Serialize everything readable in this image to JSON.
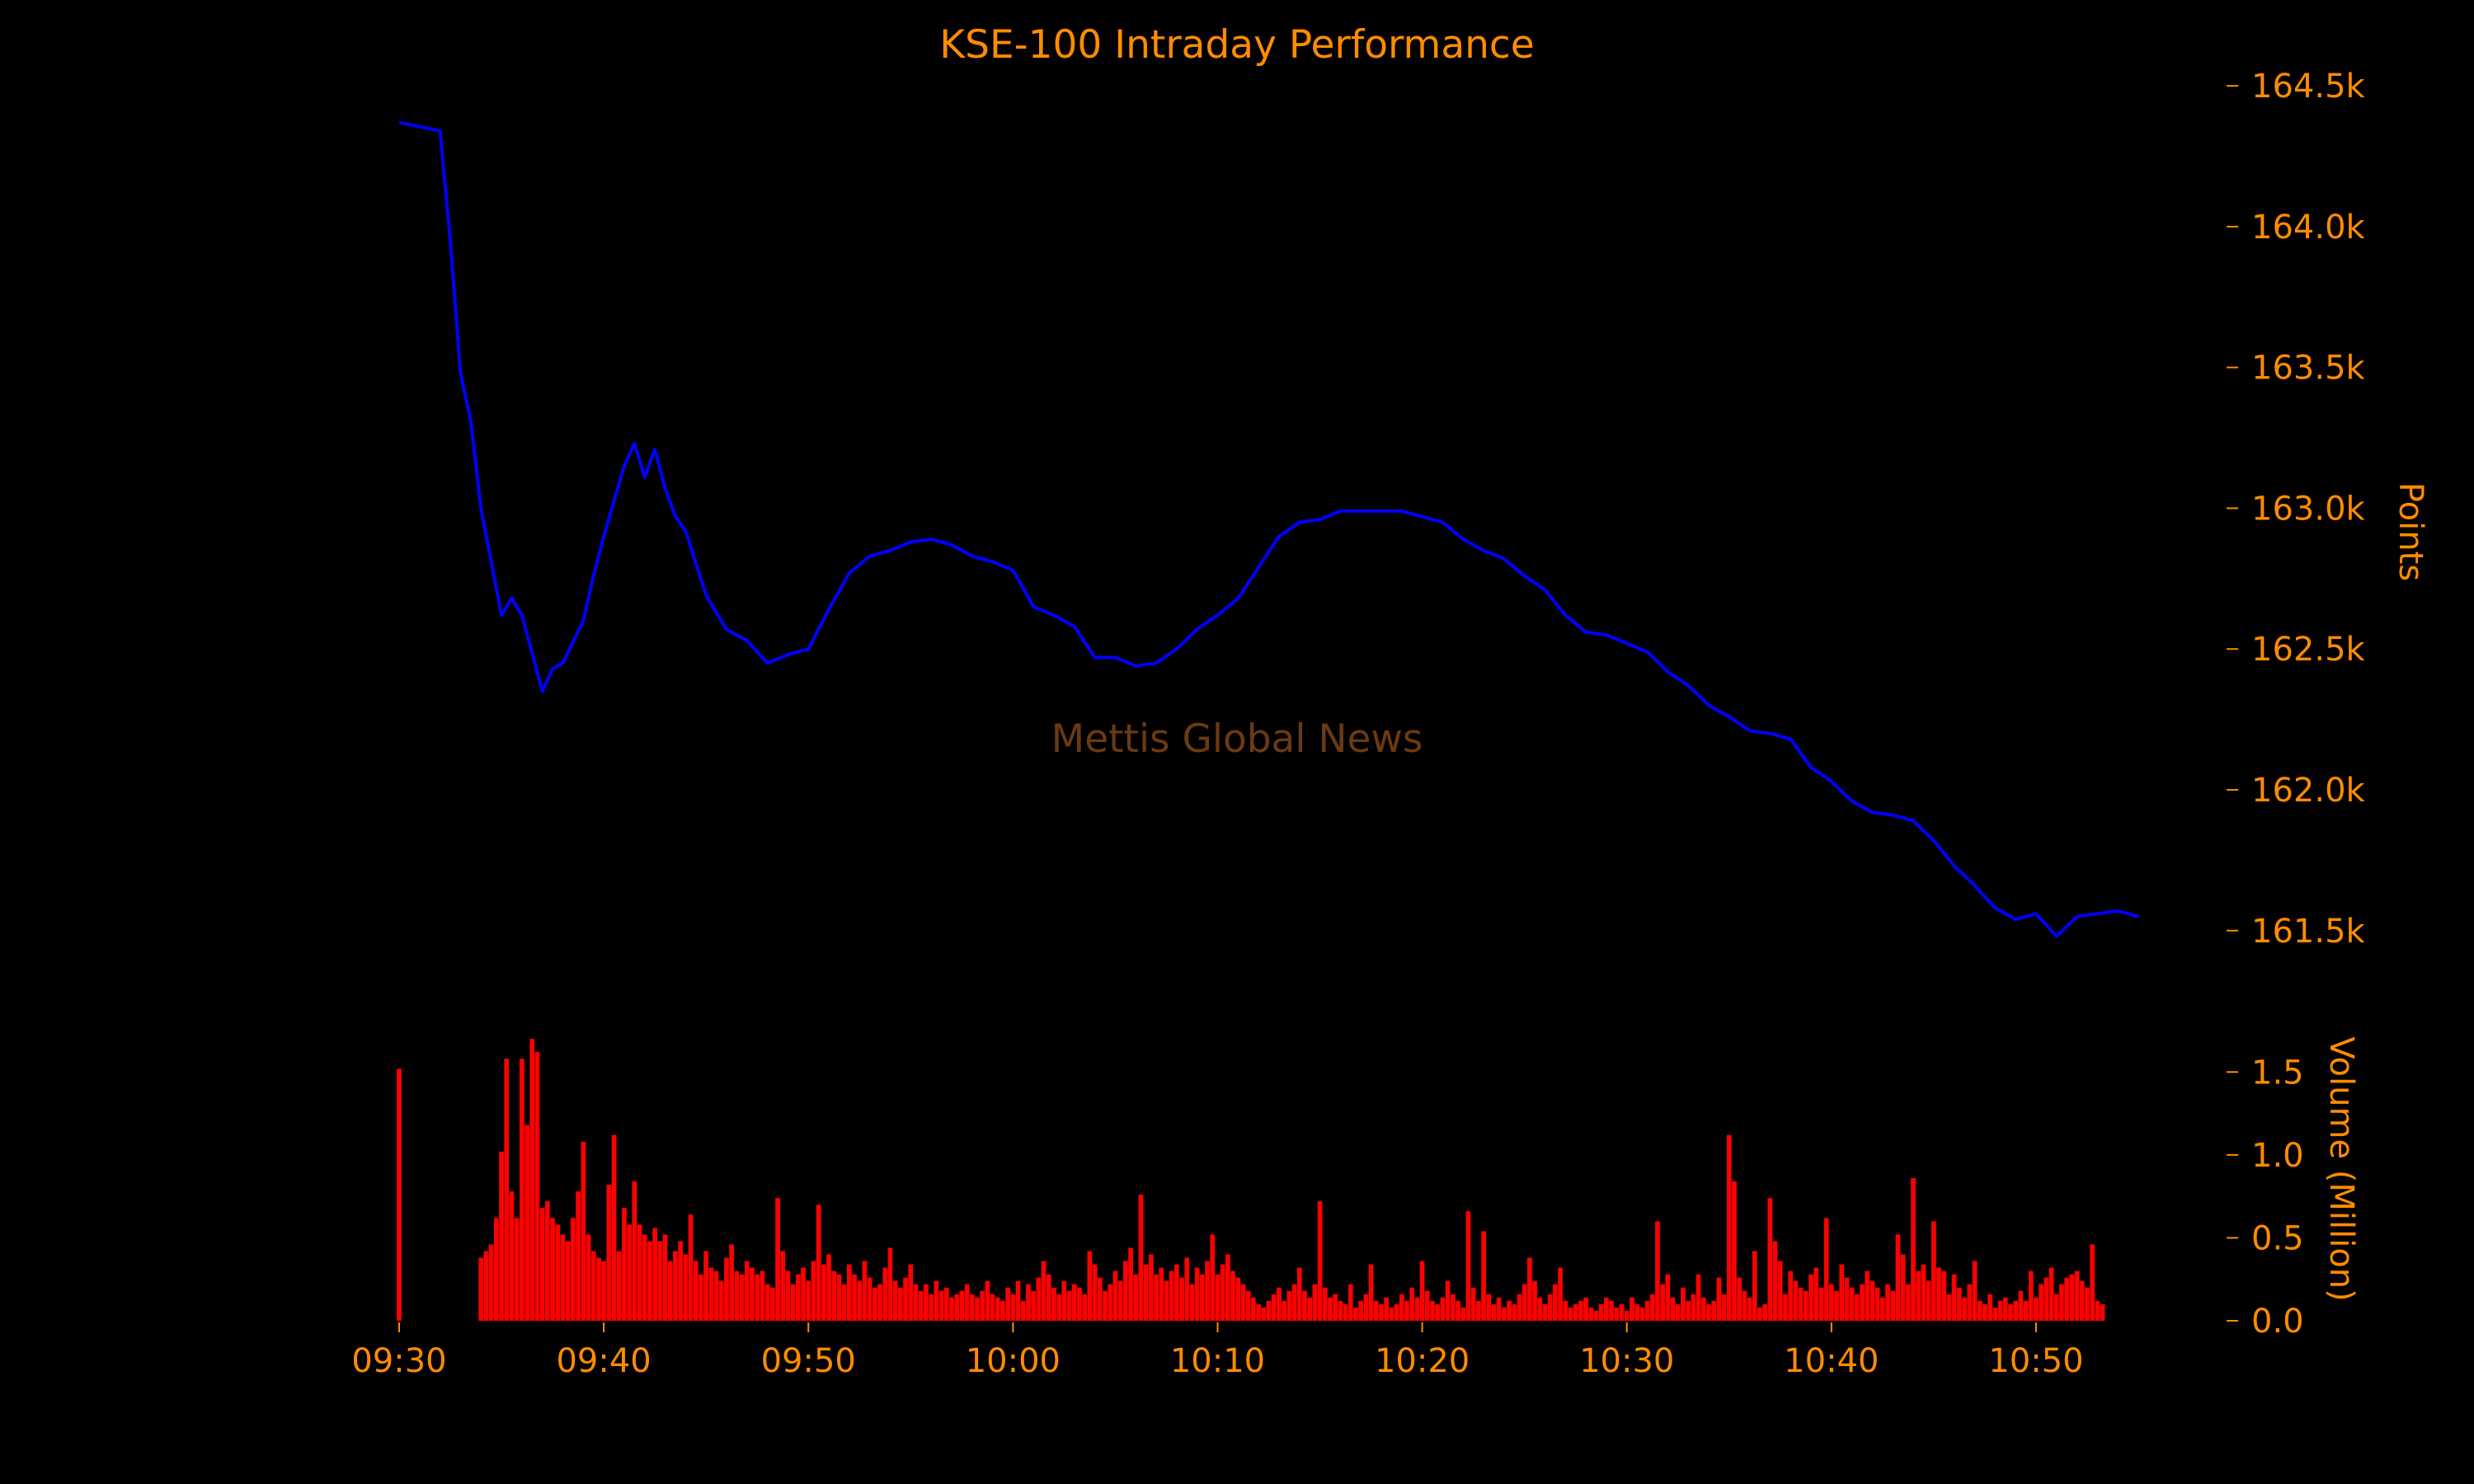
{
  "chart_data": {
    "type": "line",
    "title": "KSE-100 Intraday Performance",
    "watermark": "Mettis Global News",
    "colors": {
      "background": "#000000",
      "text": "#FF8C00",
      "price_line": "#0000FF",
      "volume_bars": "#FF0000",
      "watermark": "#6B3A12"
    },
    "x_axis": {
      "start": "09:30",
      "end": "10:55",
      "ticks": [
        "09:30",
        "09:40",
        "09:50",
        "10:00",
        "10:10",
        "10:20",
        "10:30",
        "10:40",
        "10:50"
      ]
    },
    "price_axis": {
      "label": "Points",
      "ylim": [
        161350,
        164600
      ],
      "ticks": [
        161500,
        162000,
        162500,
        163000,
        163500,
        164000,
        164500
      ],
      "tick_labels": [
        "161.5k",
        "162.0k",
        "162.5k",
        "163.0k",
        "163.5k",
        "164.0k",
        "164.5k"
      ],
      "side": "right"
    },
    "volume_axis": {
      "label": "Volume (Million)",
      "ylim": [
        0,
        1.75
      ],
      "ticks": [
        0,
        0.5,
        1.0,
        1.5
      ],
      "tick_labels": [
        "0.0",
        "0.5",
        "1.0",
        "1.5"
      ],
      "side": "right"
    },
    "price_series": {
      "name": "KSE-100",
      "points": [
        [
          "09:30",
          164370
        ],
        [
          "09:32",
          164340
        ],
        [
          "09:32:30",
          163950
        ],
        [
          "09:33",
          163480
        ],
        [
          "09:33:30",
          163310
        ],
        [
          "09:34",
          163000
        ],
        [
          "09:35",
          162620
        ],
        [
          "09:35:30",
          162680
        ],
        [
          "09:36",
          162620
        ],
        [
          "09:37",
          162350
        ],
        [
          "09:37:30",
          162430
        ],
        [
          "09:38",
          162450
        ],
        [
          "09:39",
          162600
        ],
        [
          "09:39:30",
          162760
        ],
        [
          "09:40",
          162900
        ],
        [
          "09:41",
          163150
        ],
        [
          "09:41:30",
          163230
        ],
        [
          "09:42",
          163110
        ],
        [
          "09:42:30",
          163210
        ],
        [
          "09:43",
          163070
        ],
        [
          "09:43:30",
          162970
        ],
        [
          "09:44",
          162920
        ],
        [
          "09:45",
          162690
        ],
        [
          "09:46",
          162570
        ],
        [
          "09:47",
          162530
        ],
        [
          "09:48",
          162450
        ],
        [
          "09:49",
          162480
        ],
        [
          "09:50",
          162500
        ],
        [
          "09:51",
          162640
        ],
        [
          "09:52",
          162770
        ],
        [
          "09:53",
          162830
        ],
        [
          "09:54",
          162850
        ],
        [
          "09:55",
          162880
        ],
        [
          "09:56",
          162890
        ],
        [
          "09:57",
          162870
        ],
        [
          "09:58",
          162830
        ],
        [
          "09:59",
          162810
        ],
        [
          "10:00",
          162780
        ],
        [
          "10:01",
          162650
        ],
        [
          "10:02",
          162620
        ],
        [
          "10:03",
          162580
        ],
        [
          "10:04",
          162470
        ],
        [
          "10:05",
          162470
        ],
        [
          "10:06",
          162440
        ],
        [
          "10:07",
          162450
        ],
        [
          "10:08",
          162500
        ],
        [
          "10:09",
          162570
        ],
        [
          "10:10",
          162620
        ],
        [
          "10:11",
          162680
        ],
        [
          "10:12",
          162790
        ],
        [
          "10:13",
          162900
        ],
        [
          "10:14",
          162950
        ],
        [
          "10:15",
          162960
        ],
        [
          "10:16",
          162990
        ],
        [
          "10:17",
          162990
        ],
        [
          "10:18",
          162990
        ],
        [
          "10:19",
          162990
        ],
        [
          "10:20",
          162970
        ],
        [
          "10:21",
          162950
        ],
        [
          "10:22",
          162890
        ],
        [
          "10:23",
          162850
        ],
        [
          "10:24",
          162820
        ],
        [
          "10:25",
          162760
        ],
        [
          "10:26",
          162710
        ],
        [
          "10:27",
          162620
        ],
        [
          "10:28",
          162560
        ],
        [
          "10:29",
          162550
        ],
        [
          "10:30",
          162520
        ],
        [
          "10:31",
          162490
        ],
        [
          "10:32",
          162420
        ],
        [
          "10:33",
          162370
        ],
        [
          "10:34",
          162300
        ],
        [
          "10:35",
          162260
        ],
        [
          "10:36",
          162210
        ],
        [
          "10:37",
          162200
        ],
        [
          "10:38",
          162180
        ],
        [
          "10:39",
          162080
        ],
        [
          "10:40",
          162030
        ],
        [
          "10:41",
          161960
        ],
        [
          "10:42",
          161920
        ],
        [
          "10:43",
          161910
        ],
        [
          "10:44",
          161890
        ],
        [
          "10:45",
          161820
        ],
        [
          "10:46",
          161730
        ],
        [
          "10:47",
          161660
        ],
        [
          "10:48",
          161580
        ],
        [
          "10:49",
          161540
        ],
        [
          "10:50",
          161560
        ],
        [
          "10:51",
          161480
        ],
        [
          "10:52",
          161550
        ],
        [
          "10:53",
          161560
        ],
        [
          "10:54",
          161570
        ],
        [
          "10:55",
          161550
        ]
      ]
    },
    "volume_series": {
      "name": "Volume",
      "start": "09:30",
      "interval_seconds": 15,
      "values": [
        1.52,
        0,
        0,
        0,
        0,
        0,
        0,
        0,
        0,
        0,
        0,
        0,
        0,
        0,
        0,
        0,
        0.38,
        0.42,
        0.46,
        0.62,
        1.02,
        1.58,
        0.78,
        0.62,
        1.58,
        1.18,
        1.7,
        1.62,
        0.68,
        0.72,
        0.62,
        0.58,
        0.52,
        0.48,
        0.62,
        0.78,
        1.08,
        0.52,
        0.42,
        0.38,
        0.36,
        0.82,
        1.12,
        0.42,
        0.68,
        0.58,
        0.84,
        0.58,
        0.52,
        0.48,
        0.56,
        0.48,
        0.52,
        0.36,
        0.42,
        0.48,
        0.4,
        0.64,
        0.36,
        0.28,
        0.42,
        0.32,
        0.3,
        0.24,
        0.38,
        0.46,
        0.3,
        0.28,
        0.36,
        0.32,
        0.28,
        0.3,
        0.22,
        0.2,
        0.74,
        0.42,
        0.3,
        0.22,
        0.28,
        0.32,
        0.24,
        0.36,
        0.7,
        0.34,
        0.4,
        0.3,
        0.28,
        0.22,
        0.34,
        0.28,
        0.24,
        0.36,
        0.26,
        0.2,
        0.22,
        0.32,
        0.44,
        0.24,
        0.2,
        0.26,
        0.34,
        0.22,
        0.18,
        0.22,
        0.16,
        0.24,
        0.18,
        0.2,
        0.14,
        0.16,
        0.18,
        0.22,
        0.16,
        0.14,
        0.18,
        0.24,
        0.16,
        0.14,
        0.12,
        0.2,
        0.16,
        0.24,
        0.12,
        0.22,
        0.18,
        0.26,
        0.36,
        0.28,
        0.2,
        0.16,
        0.24,
        0.18,
        0.22,
        0.2,
        0.16,
        0.42,
        0.34,
        0.26,
        0.18,
        0.22,
        0.3,
        0.24,
        0.36,
        0.44,
        0.28,
        0.76,
        0.34,
        0.4,
        0.28,
        0.32,
        0.24,
        0.3,
        0.34,
        0.26,
        0.38,
        0.22,
        0.32,
        0.28,
        0.36,
        0.52,
        0.28,
        0.34,
        0.4,
        0.3,
        0.26,
        0.22,
        0.18,
        0.14,
        0.1,
        0.08,
        0.12,
        0.16,
        0.2,
        0.12,
        0.18,
        0.22,
        0.32,
        0.18,
        0.14,
        0.22,
        0.72,
        0.2,
        0.14,
        0.16,
        0.12,
        0.1,
        0.22,
        0.08,
        0.12,
        0.16,
        0.34,
        0.12,
        0.1,
        0.14,
        0.08,
        0.1,
        0.16,
        0.12,
        0.2,
        0.14,
        0.36,
        0.18,
        0.12,
        0.1,
        0.14,
        0.24,
        0.16,
        0.12,
        0.08,
        0.66,
        0.2,
        0.12,
        0.54,
        0.16,
        0.1,
        0.14,
        0.08,
        0.12,
        0.1,
        0.16,
        0.22,
        0.38,
        0.24,
        0.14,
        0.1,
        0.16,
        0.22,
        0.32,
        0.12,
        0.08,
        0.1,
        0.12,
        0.14,
        0.08,
        0.06,
        0.1,
        0.14,
        0.12,
        0.08,
        0.1,
        0.06,
        0.14,
        0.1,
        0.08,
        0.12,
        0.16,
        0.6,
        0.22,
        0.28,
        0.14,
        0.1,
        0.2,
        0.12,
        0.16,
        0.28,
        0.14,
        0.1,
        0.12,
        0.26,
        0.16,
        1.12,
        0.84,
        0.26,
        0.18,
        0.14,
        0.42,
        0.08,
        0.1,
        0.74,
        0.48,
        0.36,
        0.16,
        0.3,
        0.24,
        0.2,
        0.18,
        0.28,
        0.32,
        0.2,
        0.62,
        0.22,
        0.18,
        0.34,
        0.26,
        0.2,
        0.16,
        0.22,
        0.3,
        0.24,
        0.2,
        0.14,
        0.22,
        0.18,
        0.52,
        0.4,
        0.22,
        0.86,
        0.3,
        0.34,
        0.24,
        0.6,
        0.32,
        0.3,
        0.16,
        0.28,
        0.2,
        0.14,
        0.22,
        0.36,
        0.12,
        0.1,
        0.16,
        0.08,
        0.12,
        0.14,
        0.1,
        0.12,
        0.18,
        0.12,
        0.3,
        0.14,
        0.22,
        0.26,
        0.32,
        0.16,
        0.22,
        0.26,
        0.28,
        0.3,
        0.24,
        0.2,
        0.46,
        0.12,
        0.1
      ]
    },
    "grid": false,
    "legend": "none"
  }
}
